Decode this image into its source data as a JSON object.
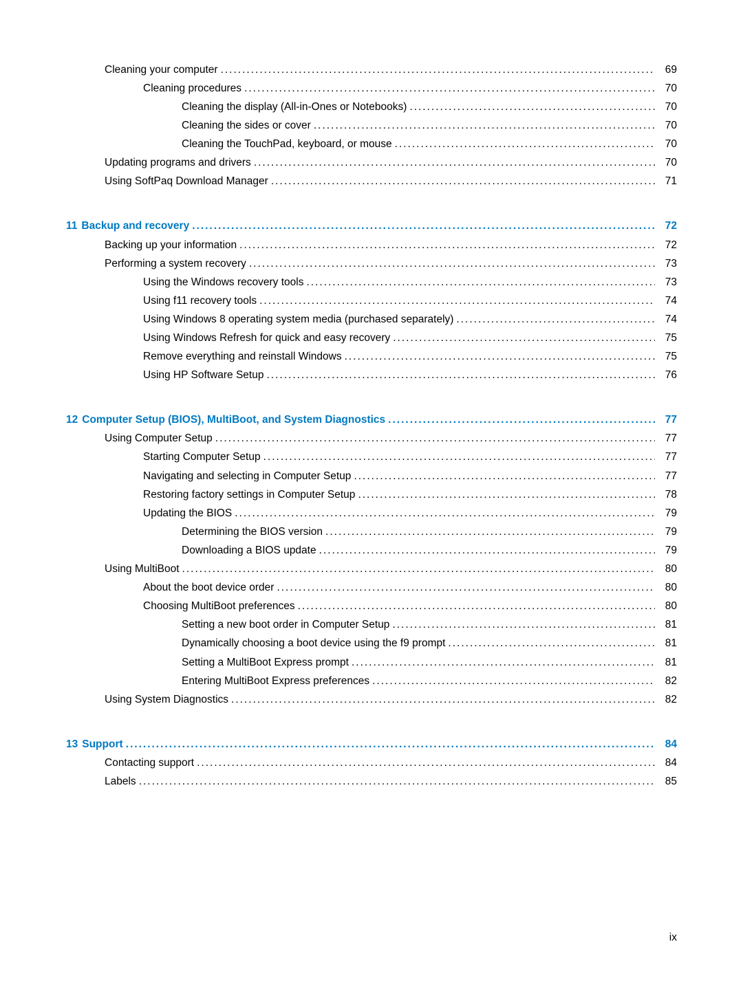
{
  "colors": {
    "link": "#007ac2",
    "text": "#000000",
    "background": "#ffffff"
  },
  "typography": {
    "font_family": "Arial",
    "body_size_pt": 11,
    "chapter_bold": true
  },
  "leader_char": ".",
  "page_footer": "ix",
  "entries": [
    {
      "level": 1,
      "text": "Cleaning your computer",
      "page": "69",
      "kind": "body"
    },
    {
      "level": 2,
      "text": "Cleaning procedures",
      "page": "70",
      "kind": "body"
    },
    {
      "level": 3,
      "text": "Cleaning the display (All-in-Ones or Notebooks)",
      "page": "70",
      "kind": "body"
    },
    {
      "level": 3,
      "text": "Cleaning the sides or cover",
      "page": "70",
      "kind": "body"
    },
    {
      "level": 3,
      "text": "Cleaning the TouchPad, keyboard, or mouse",
      "page": "70",
      "kind": "body"
    },
    {
      "level": 1,
      "text": "Updating programs and drivers",
      "page": "70",
      "kind": "body"
    },
    {
      "level": 1,
      "text": "Using SoftPaq Download Manager",
      "page": "71",
      "kind": "body"
    },
    {
      "level": 0,
      "chapter_num": "11",
      "text": "Backup and recovery",
      "page": "72",
      "kind": "chapter"
    },
    {
      "level": 1,
      "text": "Backing up your information",
      "page": "72",
      "kind": "body"
    },
    {
      "level": 1,
      "text": "Performing a system recovery",
      "page": "73",
      "kind": "body"
    },
    {
      "level": 2,
      "text": "Using the Windows recovery tools",
      "page": "73",
      "kind": "body"
    },
    {
      "level": 2,
      "text": "Using f11 recovery tools",
      "page": "74",
      "kind": "body"
    },
    {
      "level": 2,
      "text": "Using Windows 8 operating system media (purchased separately)",
      "page": "74",
      "kind": "body"
    },
    {
      "level": 2,
      "text": "Using Windows Refresh for quick and easy recovery",
      "page": "75",
      "kind": "body"
    },
    {
      "level": 2,
      "text": "Remove everything and reinstall Windows",
      "page": "75",
      "kind": "body"
    },
    {
      "level": 2,
      "text": "Using HP Software Setup",
      "page": "76",
      "kind": "body"
    },
    {
      "level": 0,
      "chapter_num": "12",
      "text": "Computer Setup (BIOS), MultiBoot, and System Diagnostics",
      "page": "77",
      "kind": "chapter"
    },
    {
      "level": 1,
      "text": "Using Computer Setup",
      "page": "77",
      "kind": "body"
    },
    {
      "level": 2,
      "text": "Starting Computer Setup",
      "page": "77",
      "kind": "body"
    },
    {
      "level": 2,
      "text": "Navigating and selecting in Computer Setup",
      "page": "77",
      "kind": "body"
    },
    {
      "level": 2,
      "text": "Restoring factory settings in Computer Setup",
      "page": "78",
      "kind": "body"
    },
    {
      "level": 2,
      "text": "Updating the BIOS",
      "page": "79",
      "kind": "body"
    },
    {
      "level": 3,
      "text": "Determining the BIOS version",
      "page": "79",
      "kind": "body"
    },
    {
      "level": 3,
      "text": "Downloading a BIOS update",
      "page": "79",
      "kind": "body"
    },
    {
      "level": 1,
      "text": "Using MultiBoot",
      "page": "80",
      "kind": "body"
    },
    {
      "level": 2,
      "text": "About the boot device order",
      "page": "80",
      "kind": "body"
    },
    {
      "level": 2,
      "text": "Choosing MultiBoot preferences",
      "page": "80",
      "kind": "body"
    },
    {
      "level": 3,
      "text": "Setting a new boot order in Computer Setup",
      "page": "81",
      "kind": "body"
    },
    {
      "level": 3,
      "text": "Dynamically choosing a boot device using the f9 prompt",
      "page": "81",
      "kind": "body"
    },
    {
      "level": 3,
      "text": "Setting a MultiBoot Express prompt",
      "page": "81",
      "kind": "body"
    },
    {
      "level": 3,
      "text": "Entering MultiBoot Express preferences",
      "page": "82",
      "kind": "body"
    },
    {
      "level": 1,
      "text": "Using System Diagnostics",
      "page": "82",
      "kind": "body"
    },
    {
      "level": 0,
      "chapter_num": "13",
      "text": "Support",
      "page": "84",
      "kind": "chapter"
    },
    {
      "level": 1,
      "text": "Contacting support",
      "page": "84",
      "kind": "body"
    },
    {
      "level": 1,
      "text": "Labels",
      "page": "85",
      "kind": "body"
    }
  ]
}
